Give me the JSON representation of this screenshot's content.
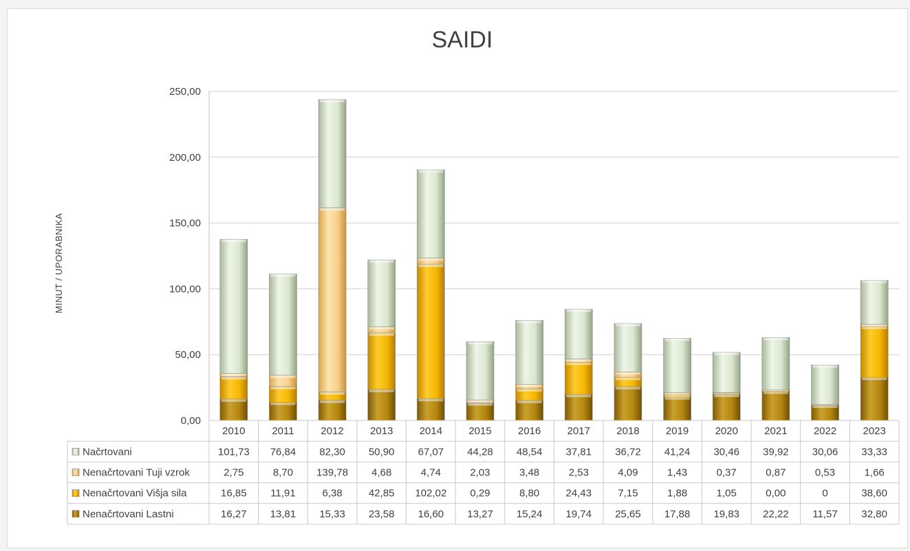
{
  "chart_data": {
    "type": "bar",
    "stacked": true,
    "title": "SAIDI",
    "xlabel": "",
    "ylabel": "MINUT / UPORABNIKA",
    "ylim": [
      0,
      250
    ],
    "yticks": [
      "0,00",
      "50,00",
      "100,00",
      "150,00",
      "200,00",
      "250,00"
    ],
    "grid": true,
    "legend": "data-table",
    "categories": [
      "2010",
      "2011",
      "2012",
      "2013",
      "2014",
      "2015",
      "2016",
      "2017",
      "2018",
      "2019",
      "2020",
      "2021",
      "2022",
      "2023"
    ],
    "series": [
      {
        "name": "Načrtovani",
        "color": "#d6e4c8",
        "values": [
          101.73,
          76.84,
          82.3,
          50.9,
          67.07,
          44.28,
          48.54,
          37.81,
          36.72,
          41.24,
          30.46,
          39.92,
          30.06,
          33.33
        ],
        "labels": [
          "101,73",
          "76,84",
          "82,30",
          "50,90",
          "67,07",
          "44,28",
          "48,54",
          "37,81",
          "36,72",
          "41,24",
          "30,46",
          "39,92",
          "30,06",
          "33,33"
        ]
      },
      {
        "name": "Nenačrtovani Tuji vzrok",
        "color": "#f5cf86",
        "values": [
          2.75,
          8.7,
          139.78,
          4.68,
          4.74,
          2.03,
          3.48,
          2.53,
          4.09,
          1.43,
          0.37,
          0.87,
          0.53,
          1.66
        ],
        "labels": [
          "2,75",
          "8,70",
          "139,78",
          "4,68",
          "4,74",
          "2,03",
          "3,48",
          "2,53",
          "4,09",
          "1,43",
          "0,37",
          "0,87",
          "0,53",
          "1,66"
        ]
      },
      {
        "name": "Nenačrtovani Višja sila",
        "color": "#f2b40a",
        "values": [
          16.85,
          11.91,
          6.38,
          42.85,
          102.02,
          0.29,
          8.8,
          24.43,
          7.15,
          1.88,
          1.05,
          0.0,
          0,
          38.6
        ],
        "labels": [
          "16,85",
          "11,91",
          "6,38",
          "42,85",
          "102,02",
          "0,29",
          "8,80",
          "24,43",
          "7,15",
          "1,88",
          "1,05",
          "0,00",
          "0",
          "38,60"
        ]
      },
      {
        "name": "Nenačrtovani Lastni",
        "color": "#b8860b",
        "values": [
          16.27,
          13.81,
          15.33,
          23.58,
          16.6,
          13.27,
          15.24,
          19.74,
          25.65,
          17.88,
          19.83,
          22.22,
          11.57,
          32.8
        ],
        "labels": [
          "16,27",
          "13,81",
          "15,33",
          "23,58",
          "16,60",
          "13,27",
          "15,24",
          "19,74",
          "25,65",
          "17,88",
          "19,83",
          "22,22",
          "11,57",
          "32,80"
        ]
      }
    ]
  }
}
